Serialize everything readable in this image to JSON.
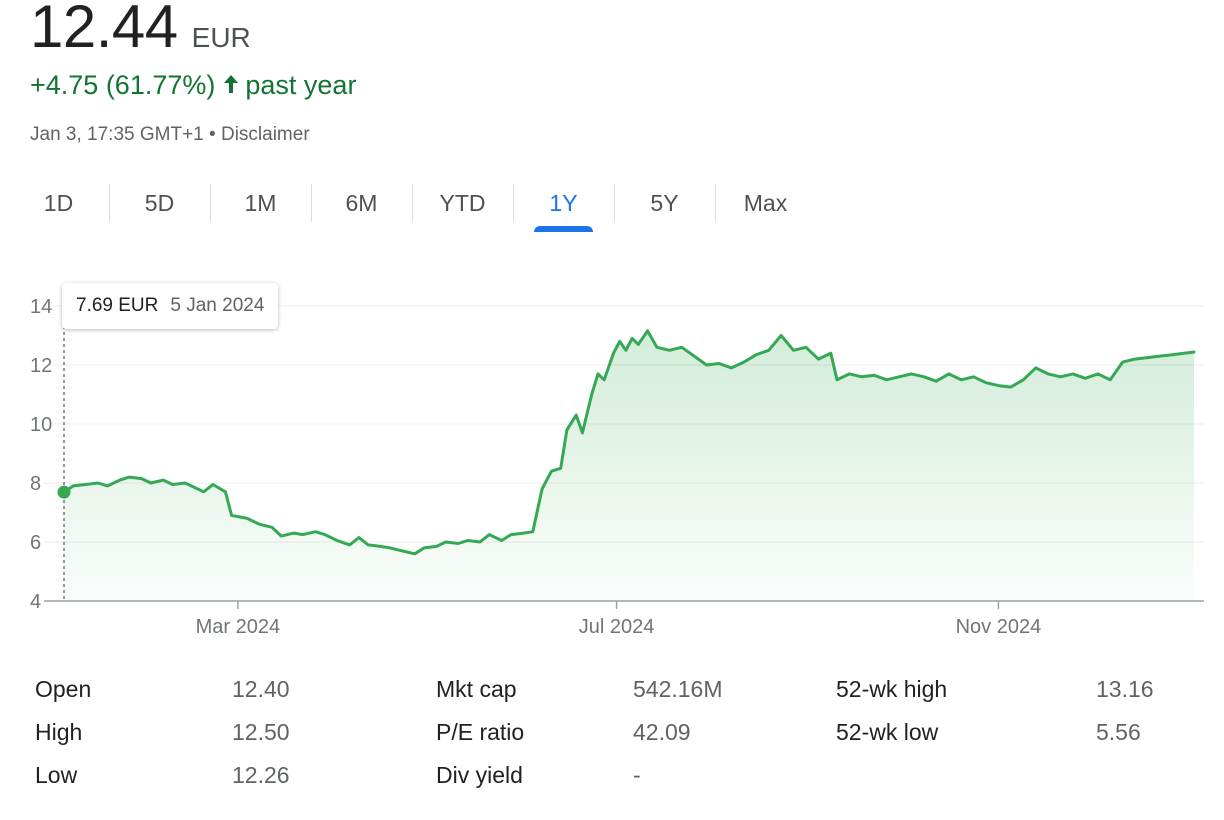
{
  "quote": {
    "price": "12.44",
    "currency": "EUR",
    "change": "+4.75 (61.77%)",
    "period": "past year",
    "timestamp": "Jan 3, 17:35 GMT+1",
    "separator": "•",
    "disclaimer": "Disclaimer"
  },
  "colors": {
    "positive": "#137333",
    "line": "#34a853",
    "accent": "#1a73e8",
    "muted": "#5f6368"
  },
  "tabs": [
    {
      "label": "1D",
      "active": false
    },
    {
      "label": "5D",
      "active": false
    },
    {
      "label": "1M",
      "active": false
    },
    {
      "label": "6M",
      "active": false
    },
    {
      "label": "YTD",
      "active": false
    },
    {
      "label": "1Y",
      "active": true
    },
    {
      "label": "5Y",
      "active": false
    },
    {
      "label": "Max",
      "active": false
    }
  ],
  "tooltip": {
    "value": "7.69 EUR",
    "date": "5 Jan 2024"
  },
  "chart_data": {
    "type": "area",
    "x_unit": "date",
    "y_ticks": [
      4,
      6,
      8,
      10,
      12,
      14
    ],
    "ylim": [
      4,
      14
    ],
    "xlim": [
      "2024-01-05",
      "2025-01-03"
    ],
    "x_ticks": [
      {
        "label": "Mar 2024",
        "date": "2024-03-01"
      },
      {
        "label": "Jul 2024",
        "date": "2024-07-01"
      },
      {
        "label": "Nov 2024",
        "date": "2024-11-01"
      }
    ],
    "grid": true,
    "series": [
      {
        "points": [
          [
            "2024-01-05",
            7.69
          ],
          [
            "2024-01-08",
            7.9
          ],
          [
            "2024-01-12",
            7.95
          ],
          [
            "2024-01-16",
            8.0
          ],
          [
            "2024-01-19",
            7.9
          ],
          [
            "2024-01-23",
            8.1
          ],
          [
            "2024-01-26",
            8.2
          ],
          [
            "2024-01-30",
            8.15
          ],
          [
            "2024-02-02",
            8.0
          ],
          [
            "2024-02-06",
            8.1
          ],
          [
            "2024-02-09",
            7.95
          ],
          [
            "2024-02-13",
            8.0
          ],
          [
            "2024-02-16",
            7.85
          ],
          [
            "2024-02-19",
            7.7
          ],
          [
            "2024-02-22",
            7.95
          ],
          [
            "2024-02-26",
            7.7
          ],
          [
            "2024-02-28",
            6.9
          ],
          [
            "2024-03-04",
            6.8
          ],
          [
            "2024-03-08",
            6.6
          ],
          [
            "2024-03-12",
            6.5
          ],
          [
            "2024-03-15",
            6.2
          ],
          [
            "2024-03-19",
            6.3
          ],
          [
            "2024-03-22",
            6.25
          ],
          [
            "2024-03-26",
            6.35
          ],
          [
            "2024-03-29",
            6.25
          ],
          [
            "2024-04-02",
            6.05
          ],
          [
            "2024-04-06",
            5.9
          ],
          [
            "2024-04-09",
            6.15
          ],
          [
            "2024-04-12",
            5.9
          ],
          [
            "2024-04-16",
            5.85
          ],
          [
            "2024-04-19",
            5.8
          ],
          [
            "2024-04-23",
            5.7
          ],
          [
            "2024-04-27",
            5.6
          ],
          [
            "2024-04-30",
            5.8
          ],
          [
            "2024-05-04",
            5.85
          ],
          [
            "2024-05-07",
            6.0
          ],
          [
            "2024-05-11",
            5.95
          ],
          [
            "2024-05-14",
            6.05
          ],
          [
            "2024-05-18",
            6.0
          ],
          [
            "2024-05-21",
            6.25
          ],
          [
            "2024-05-25",
            6.05
          ],
          [
            "2024-05-28",
            6.25
          ],
          [
            "2024-06-01",
            6.3
          ],
          [
            "2024-06-04",
            6.35
          ],
          [
            "2024-06-07",
            7.8
          ],
          [
            "2024-06-10",
            8.4
          ],
          [
            "2024-06-13",
            8.5
          ],
          [
            "2024-06-15",
            9.8
          ],
          [
            "2024-06-18",
            10.3
          ],
          [
            "2024-06-20",
            9.7
          ],
          [
            "2024-06-23",
            11.0
          ],
          [
            "2024-06-25",
            11.7
          ],
          [
            "2024-06-27",
            11.5
          ],
          [
            "2024-06-30",
            12.4
          ],
          [
            "2024-07-02",
            12.8
          ],
          [
            "2024-07-04",
            12.5
          ],
          [
            "2024-07-06",
            12.9
          ],
          [
            "2024-07-08",
            12.7
          ],
          [
            "2024-07-11",
            13.16
          ],
          [
            "2024-07-14",
            12.6
          ],
          [
            "2024-07-18",
            12.5
          ],
          [
            "2024-07-22",
            12.6
          ],
          [
            "2024-07-26",
            12.3
          ],
          [
            "2024-07-30",
            12.0
          ],
          [
            "2024-08-03",
            12.05
          ],
          [
            "2024-08-07",
            11.9
          ],
          [
            "2024-08-11",
            12.1
          ],
          [
            "2024-08-15",
            12.35
          ],
          [
            "2024-08-19",
            12.5
          ],
          [
            "2024-08-23",
            13.0
          ],
          [
            "2024-08-27",
            12.5
          ],
          [
            "2024-08-31",
            12.6
          ],
          [
            "2024-09-04",
            12.2
          ],
          [
            "2024-09-08",
            12.4
          ],
          [
            "2024-09-10",
            11.5
          ],
          [
            "2024-09-14",
            11.7
          ],
          [
            "2024-09-18",
            11.6
          ],
          [
            "2024-09-22",
            11.65
          ],
          [
            "2024-09-26",
            11.5
          ],
          [
            "2024-09-30",
            11.6
          ],
          [
            "2024-10-04",
            11.7
          ],
          [
            "2024-10-08",
            11.6
          ],
          [
            "2024-10-12",
            11.45
          ],
          [
            "2024-10-16",
            11.7
          ],
          [
            "2024-10-20",
            11.5
          ],
          [
            "2024-10-24",
            11.6
          ],
          [
            "2024-10-28",
            11.4
          ],
          [
            "2024-11-01",
            11.3
          ],
          [
            "2024-11-05",
            11.25
          ],
          [
            "2024-11-09",
            11.5
          ],
          [
            "2024-11-13",
            11.9
          ],
          [
            "2024-11-17",
            11.7
          ],
          [
            "2024-11-21",
            11.6
          ],
          [
            "2024-11-25",
            11.7
          ],
          [
            "2024-11-29",
            11.55
          ],
          [
            "2024-12-03",
            11.7
          ],
          [
            "2024-12-07",
            11.5
          ],
          [
            "2024-12-11",
            12.1
          ],
          [
            "2024-12-15",
            12.2
          ],
          [
            "2024-12-19",
            12.25
          ],
          [
            "2024-12-23",
            12.3
          ],
          [
            "2024-12-27",
            12.35
          ],
          [
            "2025-01-03",
            12.44
          ]
        ]
      }
    ]
  },
  "stats": {
    "rows": [
      [
        {
          "label": "Open",
          "value": "12.40"
        },
        {
          "label": "Mkt cap",
          "value": "542.16M"
        },
        {
          "label": "52-wk high",
          "value": "13.16"
        }
      ],
      [
        {
          "label": "High",
          "value": "12.50"
        },
        {
          "label": "P/E ratio",
          "value": "42.09"
        },
        {
          "label": "52-wk low",
          "value": "5.56"
        }
      ],
      [
        {
          "label": "Low",
          "value": "12.26"
        },
        {
          "label": "Div yield",
          "value": "-"
        },
        {
          "label": "",
          "value": ""
        }
      ]
    ]
  }
}
